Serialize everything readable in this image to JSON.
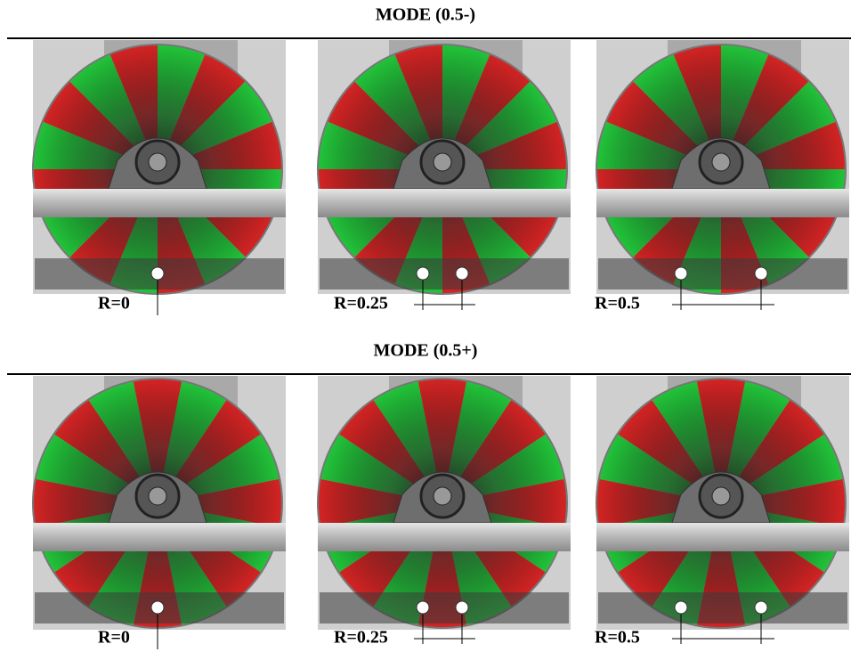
{
  "sections": [
    {
      "title": "MODE (0.5-)",
      "panels": [
        {
          "label": "R=0"
        },
        {
          "label": "R=0.25"
        },
        {
          "label": "R=0.5"
        }
      ]
    },
    {
      "title": "MODE (0.5+)",
      "panels": [
        {
          "label": "R=0"
        },
        {
          "label": "R=0.25"
        },
        {
          "label": "R=0.5"
        }
      ]
    }
  ]
}
